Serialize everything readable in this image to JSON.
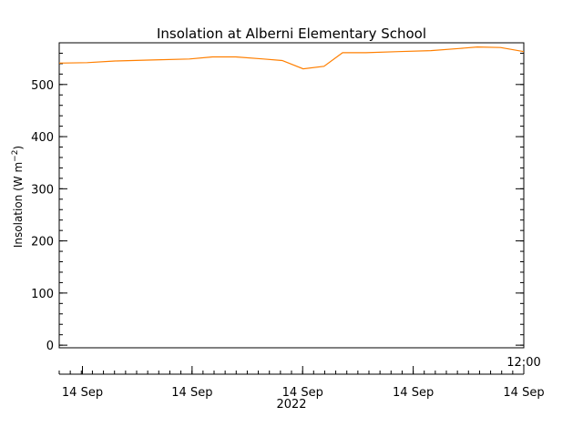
{
  "chart_data": {
    "type": "line",
    "title": "Insolation at Alberni Elementary School",
    "ylabel_main": "Insolation (W m",
    "ylabel_sup": "−2",
    "ylabel_close": ")",
    "ylim": [
      -5,
      580
    ],
    "y_ticks": [
      0,
      100,
      200,
      300,
      400,
      500
    ],
    "x_ticks": [
      {
        "t": 0.05,
        "label": "14 Sep"
      },
      {
        "t": 0.286,
        "label": "14 Sep"
      },
      {
        "t": 0.524,
        "label": "14 Sep"
      },
      {
        "t": 0.762,
        "label": "14 Sep"
      },
      {
        "t": 1.0,
        "label": "14 Sep"
      }
    ],
    "x_time_label": "12:00",
    "x_year_label": "2022",
    "grid": false,
    "series": [
      {
        "color": "#ff7f00",
        "points": [
          [
            0.0,
            541
          ],
          [
            0.06,
            542
          ],
          [
            0.12,
            545
          ],
          [
            0.2,
            547
          ],
          [
            0.28,
            549
          ],
          [
            0.33,
            553
          ],
          [
            0.38,
            553
          ],
          [
            0.44,
            549
          ],
          [
            0.48,
            546
          ],
          [
            0.525,
            530
          ],
          [
            0.57,
            535
          ],
          [
            0.61,
            561
          ],
          [
            0.66,
            561
          ],
          [
            0.73,
            563
          ],
          [
            0.8,
            565
          ],
          [
            0.86,
            569
          ],
          [
            0.9,
            572
          ],
          [
            0.95,
            571
          ],
          [
            1.0,
            563
          ]
        ]
      }
    ]
  }
}
